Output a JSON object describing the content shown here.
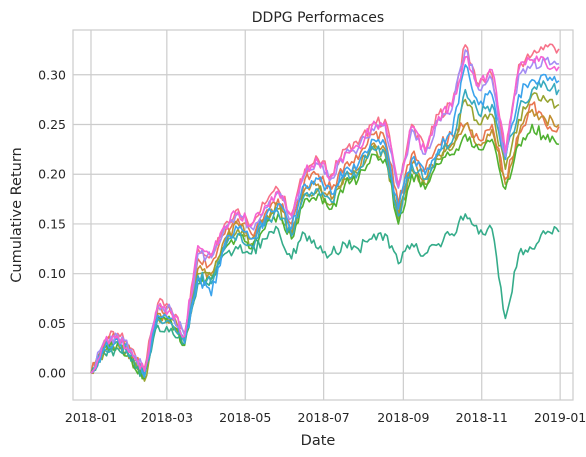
{
  "chart_data": {
    "type": "line",
    "title": "DDPG Performaces",
    "xlabel": "Date",
    "ylabel": "Cumulative Return",
    "x_axis_kind": "date",
    "xlim": [
      "2017-12-18",
      "2019-01-11"
    ],
    "ylim": [
      -0.027,
      0.345
    ],
    "x_ticks": [
      "2018-01-01",
      "2018-03-01",
      "2018-05-01",
      "2018-07-01",
      "2018-09-01",
      "2018-11-01",
      "2019-01-01"
    ],
    "x_tick_labels": [
      "2018-01",
      "2018-03",
      "2018-05",
      "2018-07",
      "2018-09",
      "2018-11",
      "2019-01"
    ],
    "y_ticks": [
      0.0,
      0.05,
      0.1,
      0.15,
      0.2,
      0.25,
      0.3
    ],
    "y_tick_labels": [
      "0.00",
      "0.05",
      "0.10",
      "0.15",
      "0.20",
      "0.25",
      "0.30"
    ],
    "grid": true,
    "legend": "none",
    "series_colors": [
      "#f77189",
      "#e8764f",
      "#c28f30",
      "#97a431",
      "#50b131",
      "#35ac8a",
      "#38aabf",
      "#3ba3ec",
      "#a48cf4",
      "#f563d3"
    ],
    "series": [
      {
        "values": [
          0.0,
          0.033,
          0.04,
          0.025,
          0.005,
          0.07,
          0.065,
          0.04,
          0.125,
          0.12,
          0.15,
          0.165,
          0.15,
          0.17,
          0.185,
          0.16,
          0.205,
          0.215,
          0.2,
          0.225,
          0.23,
          0.25,
          0.255,
          0.19,
          0.25,
          0.225,
          0.26,
          0.27,
          0.33,
          0.29,
          0.3,
          0.22,
          0.31,
          0.32,
          0.33,
          0.326
        ]
      },
      {
        "values": [
          0.0,
          0.03,
          0.036,
          0.02,
          0.0,
          0.065,
          0.06,
          0.035,
          0.115,
          0.11,
          0.14,
          0.155,
          0.14,
          0.16,
          0.175,
          0.15,
          0.195,
          0.2,
          0.185,
          0.21,
          0.215,
          0.24,
          0.235,
          0.17,
          0.22,
          0.205,
          0.23,
          0.24,
          0.25,
          0.235,
          0.25,
          0.195,
          0.24,
          0.27,
          0.25,
          0.248
        ]
      },
      {
        "values": [
          0.0,
          0.026,
          0.032,
          0.018,
          -0.003,
          0.06,
          0.055,
          0.033,
          0.105,
          0.1,
          0.135,
          0.15,
          0.135,
          0.155,
          0.17,
          0.14,
          0.185,
          0.19,
          0.175,
          0.2,
          0.205,
          0.23,
          0.225,
          0.16,
          0.21,
          0.195,
          0.22,
          0.23,
          0.25,
          0.23,
          0.245,
          0.19,
          0.24,
          0.265,
          0.255,
          0.25
        ]
      },
      {
        "values": [
          0.0,
          0.022,
          0.03,
          0.015,
          -0.008,
          0.055,
          0.05,
          0.03,
          0.1,
          0.098,
          0.13,
          0.145,
          0.13,
          0.15,
          0.165,
          0.14,
          0.18,
          0.185,
          0.17,
          0.195,
          0.2,
          0.225,
          0.22,
          0.155,
          0.205,
          0.19,
          0.215,
          0.225,
          0.275,
          0.25,
          0.26,
          0.205,
          0.255,
          0.28,
          0.275,
          0.27
        ]
      },
      {
        "values": [
          0.0,
          0.025,
          0.03,
          0.015,
          -0.005,
          0.058,
          0.052,
          0.028,
          0.095,
          0.095,
          0.125,
          0.14,
          0.125,
          0.145,
          0.16,
          0.135,
          0.175,
          0.18,
          0.165,
          0.19,
          0.195,
          0.22,
          0.215,
          0.15,
          0.2,
          0.185,
          0.21,
          0.22,
          0.24,
          0.225,
          0.235,
          0.185,
          0.23,
          0.25,
          0.235,
          0.23
        ]
      },
      {
        "values": [
          0.0,
          0.02,
          0.025,
          0.012,
          -0.002,
          0.048,
          0.045,
          0.03,
          0.09,
          0.095,
          0.12,
          0.125,
          0.12,
          0.135,
          0.145,
          0.115,
          0.14,
          0.125,
          0.12,
          0.13,
          0.125,
          0.135,
          0.14,
          0.11,
          0.13,
          0.12,
          0.13,
          0.14,
          0.16,
          0.14,
          0.145,
          0.055,
          0.12,
          0.125,
          0.14,
          0.142
        ]
      },
      {
        "values": [
          0.0,
          0.024,
          0.032,
          0.018,
          0.0,
          0.055,
          0.05,
          0.032,
          0.098,
          0.09,
          0.125,
          0.14,
          0.128,
          0.148,
          0.162,
          0.138,
          0.18,
          0.185,
          0.172,
          0.198,
          0.202,
          0.228,
          0.222,
          0.158,
          0.21,
          0.195,
          0.22,
          0.232,
          0.285,
          0.26,
          0.27,
          0.215,
          0.265,
          0.285,
          0.29,
          0.285
        ]
      },
      {
        "values": [
          0.0,
          0.025,
          0.034,
          0.02,
          -0.004,
          0.058,
          0.055,
          0.03,
          0.095,
          0.078,
          0.13,
          0.145,
          0.135,
          0.155,
          0.17,
          0.145,
          0.19,
          0.195,
          0.18,
          0.205,
          0.21,
          0.235,
          0.23,
          0.165,
          0.215,
          0.2,
          0.225,
          0.24,
          0.31,
          0.27,
          0.28,
          0.215,
          0.28,
          0.295,
          0.3,
          0.294
        ]
      },
      {
        "values": [
          0.0,
          0.032,
          0.038,
          0.024,
          0.003,
          0.068,
          0.063,
          0.038,
          0.12,
          0.116,
          0.146,
          0.16,
          0.146,
          0.166,
          0.182,
          0.156,
          0.2,
          0.21,
          0.196,
          0.22,
          0.226,
          0.246,
          0.25,
          0.186,
          0.245,
          0.22,
          0.255,
          0.265,
          0.325,
          0.285,
          0.295,
          0.218,
          0.3,
          0.31,
          0.315,
          0.311
        ]
      },
      {
        "values": [
          0.0,
          0.031,
          0.037,
          0.022,
          0.002,
          0.066,
          0.062,
          0.037,
          0.128,
          0.118,
          0.148,
          0.162,
          0.148,
          0.168,
          0.183,
          0.158,
          0.202,
          0.212,
          0.198,
          0.222,
          0.228,
          0.248,
          0.252,
          0.188,
          0.248,
          0.222,
          0.258,
          0.268,
          0.318,
          0.288,
          0.305,
          0.222,
          0.305,
          0.315,
          0.312,
          0.308
        ]
      }
    ]
  }
}
